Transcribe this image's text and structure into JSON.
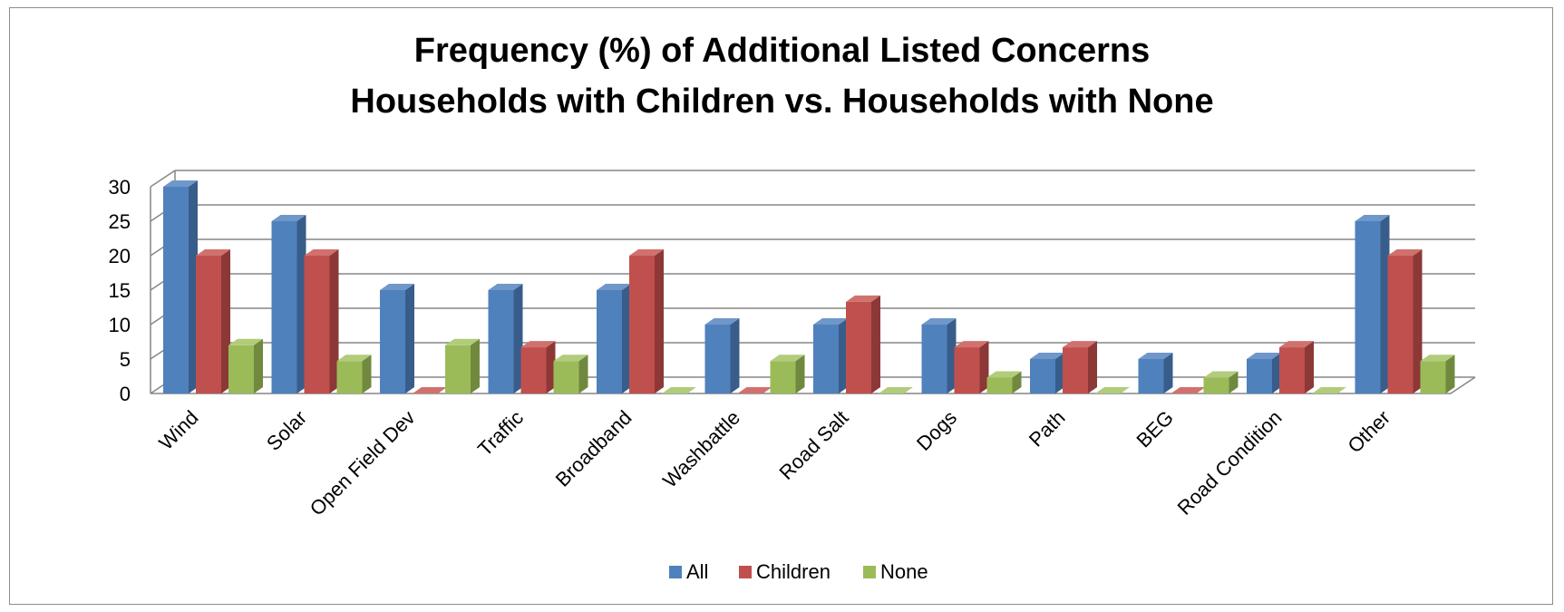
{
  "chart_data": {
    "type": "bar",
    "title_line1": "Frequency (%) of Additional Listed Concerns",
    "title_line2": "Households with Children vs. Households with None",
    "categories": [
      "Wind",
      "Solar",
      "Open Field Dev",
      "Traffic",
      "Broadband",
      "Washbattle",
      "Road Salt",
      "Dogs",
      "Path",
      "BEG",
      "Road Condition",
      "Other"
    ],
    "series": [
      {
        "name": "All",
        "color": "#4F81BD",
        "side": "#385D8A",
        "top": "#6F97C9",
        "values": [
          30,
          25,
          15,
          15,
          15,
          10,
          10,
          10,
          5,
          5,
          5,
          25
        ]
      },
      {
        "name": "Children",
        "color": "#C0504D",
        "side": "#8C3836",
        "top": "#D0716E",
        "values": [
          20,
          20,
          0,
          6.7,
          20,
          0,
          13.3,
          6.7,
          6.7,
          0,
          6.7,
          20
        ]
      },
      {
        "name": "None",
        "color": "#9BBB59",
        "side": "#71893F",
        "top": "#B1CC7A",
        "values": [
          7,
          4.7,
          7,
          4.7,
          0,
          4.7,
          0,
          2.3,
          0,
          2.3,
          0,
          4.7
        ]
      }
    ],
    "yticks": [
      0,
      5,
      10,
      15,
      20,
      25,
      30
    ],
    "ylim": [
      0,
      30
    ],
    "grid": true,
    "legend_position": "bottom"
  }
}
